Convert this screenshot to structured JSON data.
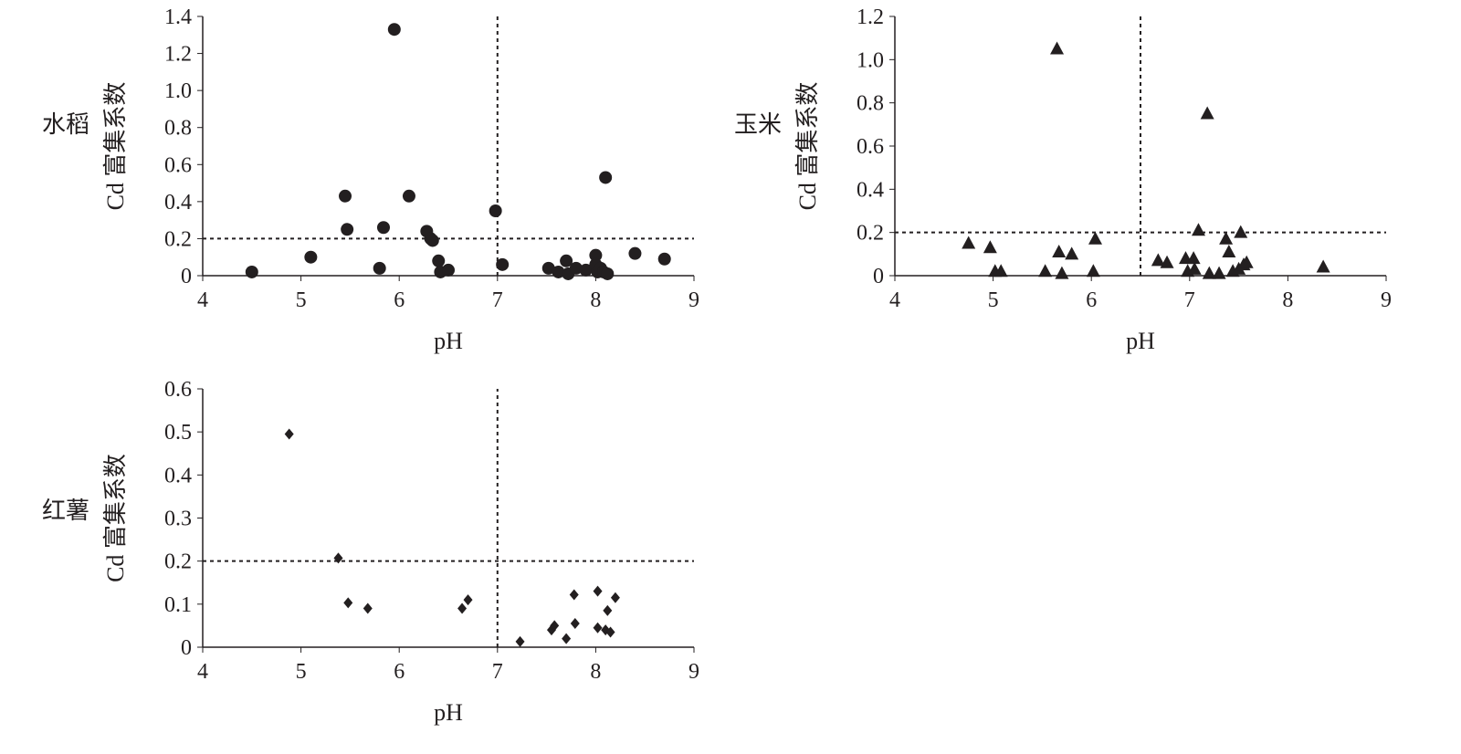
{
  "chart_data": [
    {
      "type": "scatter",
      "crop": "水稻",
      "ylabel": "Cd 富集系数",
      "xlabel": "pH",
      "marker": "circle",
      "xlim": [
        4,
        9
      ],
      "ylim": [
        0,
        1.4
      ],
      "xticks": [
        "4",
        "5",
        "6",
        "7",
        "8",
        "9"
      ],
      "yticks": [
        "0",
        "0.2",
        "0.4",
        "0.6",
        "0.8",
        "1.0",
        "1.2",
        "1.4"
      ],
      "ref_x": 7,
      "ref_y": 0.2,
      "points": [
        [
          4.5,
          0.02
        ],
        [
          5.1,
          0.1
        ],
        [
          5.45,
          0.43
        ],
        [
          5.47,
          0.25
        ],
        [
          5.8,
          0.04
        ],
        [
          5.84,
          0.26
        ],
        [
          5.95,
          1.33
        ],
        [
          6.1,
          0.43
        ],
        [
          6.28,
          0.24
        ],
        [
          6.32,
          0.2
        ],
        [
          6.34,
          0.19
        ],
        [
          6.4,
          0.08
        ],
        [
          6.42,
          0.02
        ],
        [
          6.5,
          0.03
        ],
        [
          6.98,
          0.35
        ],
        [
          7.05,
          0.06
        ],
        [
          7.52,
          0.04
        ],
        [
          7.62,
          0.02
        ],
        [
          7.7,
          0.08
        ],
        [
          7.72,
          0.01
        ],
        [
          7.8,
          0.04
        ],
        [
          7.9,
          0.03
        ],
        [
          8.0,
          0.11
        ],
        [
          8.0,
          0.06
        ],
        [
          8.02,
          0.02
        ],
        [
          8.05,
          0.04
        ],
        [
          8.08,
          0.02
        ],
        [
          8.1,
          0.53
        ],
        [
          8.12,
          0.01
        ],
        [
          8.4,
          0.12
        ],
        [
          8.7,
          0.09
        ]
      ]
    },
    {
      "type": "scatter",
      "crop": "玉米",
      "ylabel": "Cd 富集系数",
      "xlabel": "pH",
      "marker": "triangle",
      "xlim": [
        4,
        9
      ],
      "ylim": [
        0,
        1.2
      ],
      "xticks": [
        "4",
        "5",
        "6",
        "7",
        "8",
        "9"
      ],
      "yticks": [
        "0",
        "0.2",
        "0.4",
        "0.6",
        "0.8",
        "1.0",
        "1.2"
      ],
      "ref_x": 6.5,
      "ref_y": 0.2,
      "points": [
        [
          4.75,
          0.15
        ],
        [
          4.97,
          0.13
        ],
        [
          5.02,
          0.02
        ],
        [
          5.08,
          0.02
        ],
        [
          5.53,
          0.02
        ],
        [
          5.65,
          1.05
        ],
        [
          5.67,
          0.11
        ],
        [
          5.7,
          0.01
        ],
        [
          5.8,
          0.1
        ],
        [
          6.02,
          0.02
        ],
        [
          6.04,
          0.17
        ],
        [
          6.68,
          0.07
        ],
        [
          6.77,
          0.06
        ],
        [
          6.96,
          0.08
        ],
        [
          6.98,
          0.02
        ],
        [
          7.04,
          0.08
        ],
        [
          7.05,
          0.03
        ],
        [
          7.09,
          0.21
        ],
        [
          7.18,
          0.75
        ],
        [
          7.2,
          0.01
        ],
        [
          7.3,
          0.01
        ],
        [
          7.37,
          0.17
        ],
        [
          7.4,
          0.11
        ],
        [
          7.44,
          0.02
        ],
        [
          7.5,
          0.03
        ],
        [
          7.52,
          0.2
        ],
        [
          7.55,
          0.05
        ],
        [
          7.58,
          0.06
        ],
        [
          8.36,
          0.04
        ]
      ]
    },
    {
      "type": "scatter",
      "crop": "红薯",
      "ylabel": "Cd 富集系数",
      "xlabel": "pH",
      "marker": "diamond",
      "xlim": [
        4,
        9
      ],
      "ylim": [
        0,
        0.6
      ],
      "xticks": [
        "4",
        "5",
        "6",
        "7",
        "8",
        "9"
      ],
      "yticks": [
        "0",
        "0.1",
        "0.2",
        "0.3",
        "0.4",
        "0.5",
        "0.6"
      ],
      "ref_x": 7,
      "ref_y": 0.2,
      "points": [
        [
          4.88,
          0.495
        ],
        [
          5.38,
          0.207
        ],
        [
          5.48,
          0.103
        ],
        [
          5.68,
          0.09
        ],
        [
          6.64,
          0.09
        ],
        [
          6.7,
          0.11
        ],
        [
          7.23,
          0.013
        ],
        [
          7.55,
          0.04
        ],
        [
          7.58,
          0.05
        ],
        [
          7.7,
          0.02
        ],
        [
          7.78,
          0.122
        ],
        [
          7.79,
          0.055
        ],
        [
          8.02,
          0.13
        ],
        [
          8.02,
          0.045
        ],
        [
          8.1,
          0.04
        ],
        [
          8.12,
          0.085
        ],
        [
          8.15,
          0.035
        ],
        [
          8.2,
          0.115
        ]
      ]
    }
  ]
}
